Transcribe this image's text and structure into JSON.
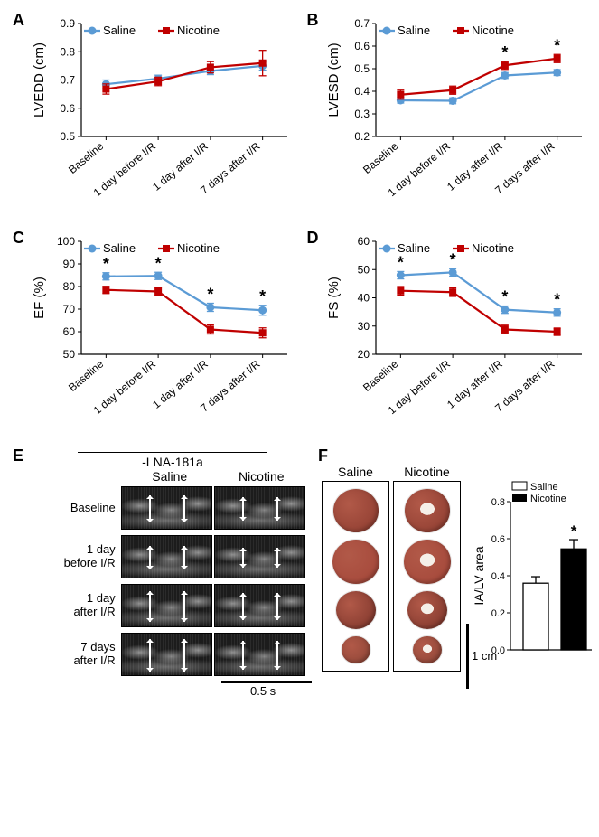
{
  "panels": {
    "A": {
      "label": "A",
      "ylabel": "LVEDD (cm)",
      "ylim": [
        0.5,
        0.9
      ],
      "yticks": [
        0.5,
        0.6,
        0.7,
        0.8,
        0.9
      ]
    },
    "B": {
      "label": "B",
      "ylabel": "LVESD (cm)",
      "ylim": [
        0.2,
        0.7
      ],
      "yticks": [
        0.2,
        0.3,
        0.4,
        0.5,
        0.6,
        0.7
      ]
    },
    "C": {
      "label": "C",
      "ylabel": "EF (%)",
      "ylim": [
        50,
        100
      ],
      "yticks": [
        50,
        60,
        70,
        80,
        90,
        100
      ]
    },
    "D": {
      "label": "D",
      "ylabel": "FS (%)",
      "ylim": [
        20,
        60
      ],
      "yticks": [
        20,
        30,
        40,
        50,
        60
      ]
    },
    "E": {
      "label": "E"
    },
    "F": {
      "label": "F"
    }
  },
  "categories": [
    "Baseline",
    "1 day before I/R",
    "1 day after I/R",
    "7 days after I/R"
  ],
  "series": {
    "saline": {
      "label": "Saline",
      "color": "#5b9bd5",
      "marker": "circle"
    },
    "nicotine": {
      "label": "Nicotine",
      "color": "#c00000",
      "marker": "square"
    }
  },
  "data": {
    "A": {
      "saline": {
        "y": [
          0.685,
          0.705,
          0.732,
          0.75
        ],
        "err": [
          0.015,
          0.012,
          0.013,
          0.015
        ]
      },
      "nicotine": {
        "y": [
          0.668,
          0.695,
          0.745,
          0.76
        ],
        "err": [
          0.018,
          0.015,
          0.02,
          0.045
        ]
      },
      "stars": []
    },
    "B": {
      "saline": {
        "y": [
          0.36,
          0.358,
          0.47,
          0.483
        ],
        "err": [
          0.012,
          0.013,
          0.013,
          0.013
        ]
      },
      "nicotine": {
        "y": [
          0.385,
          0.405,
          0.515,
          0.545
        ],
        "err": [
          0.02,
          0.018,
          0.018,
          0.018
        ]
      },
      "stars": [
        2,
        3
      ]
    },
    "C": {
      "saline": {
        "y": [
          84.5,
          84.7,
          70.8,
          69.5
        ],
        "err": [
          1.6,
          1.6,
          1.8,
          2.2
        ]
      },
      "nicotine": {
        "y": [
          78.5,
          77.8,
          61.0,
          59.5
        ],
        "err": [
          1.6,
          1.7,
          2.0,
          2.2
        ]
      },
      "stars": [
        0,
        1,
        2,
        3
      ]
    },
    "D": {
      "saline": {
        "y": [
          48.0,
          49.0,
          35.8,
          34.8
        ],
        "err": [
          1.3,
          1.3,
          1.3,
          1.3
        ]
      },
      "nicotine": {
        "y": [
          42.5,
          42.0,
          28.8,
          28.0
        ],
        "err": [
          1.5,
          1.5,
          1.5,
          1.3
        ]
      },
      "stars": [
        0,
        1,
        2,
        3
      ]
    }
  },
  "panelE": {
    "header": "-LNA-181a",
    "cols": [
      "Saline",
      "Nicotine"
    ],
    "rows": [
      "Baseline",
      "1 day\nbefore I/R",
      "1 day\nafter I/R",
      "7 days\nafter I/R"
    ],
    "scalebar": "0.5 s"
  },
  "panelF": {
    "cols": [
      "Saline",
      "Nicotine"
    ],
    "slice_colors": [
      "#8b3a2e",
      "#a34538",
      "#7a3329",
      "#8c4436"
    ],
    "hole_color": "#f5efe8",
    "scalebar": "1 cm",
    "ylabel": "IA/LV area",
    "ylim": [
      0.0,
      0.8
    ],
    "yticks": [
      0.0,
      0.2,
      0.4,
      0.6,
      0.8
    ],
    "bars": {
      "saline": {
        "value": 0.36,
        "err": 0.035,
        "fill": "#ffffff",
        "stroke": "#000000",
        "label": "Saline"
      },
      "nicotine": {
        "value": 0.545,
        "err": 0.05,
        "fill": "#000000",
        "stroke": "#000000",
        "label": "Nicotine",
        "star": true
      }
    }
  },
  "style": {
    "axis_color": "#000000",
    "axis_width": 1.2,
    "tick_len": 4,
    "tick_fontsize": 12,
    "axis_label_fontsize": 15,
    "xtick_rotate": -40,
    "marker_size": 4.5,
    "line_width": 2.2,
    "err_cap": 4,
    "star": "*",
    "star_fontsize": 18,
    "legend_fontsize": 13
  }
}
